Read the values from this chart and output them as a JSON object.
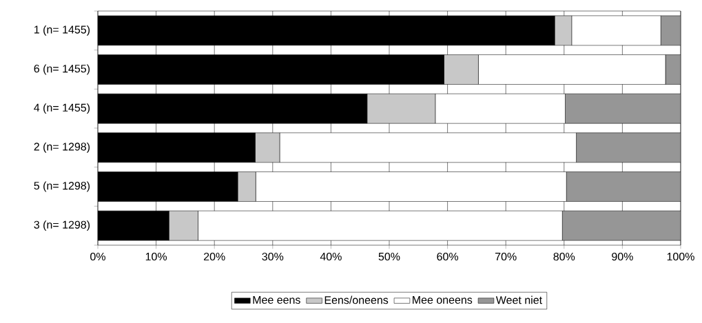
{
  "chart_data": {
    "type": "bar",
    "orientation": "horizontal",
    "stacked": true,
    "categories": [
      "1 (n= 1455)",
      "6 (n= 1455)",
      "4 (n= 1455)",
      "2 (n= 1298)",
      "5 (n= 1298)",
      "3 (n= 1298)"
    ],
    "series": [
      {
        "name": "Mee eens",
        "color": "#000000",
        "values": [
          78.4,
          59.4,
          46.2,
          27.0,
          24.0,
          12.2
        ]
      },
      {
        "name": "Eens/oneens",
        "color": "#c8c8c8",
        "values": [
          2.9,
          5.9,
          11.7,
          4.2,
          3.1,
          5.0
        ]
      },
      {
        "name": "Mee oneens",
        "color": "#ffffff",
        "values": [
          15.3,
          32.1,
          22.3,
          50.9,
          53.3,
          62.5
        ]
      },
      {
        "name": "Weet niet",
        "color": "#969696",
        "values": [
          3.4,
          2.6,
          19.8,
          17.9,
          19.6,
          20.3
        ]
      }
    ],
    "xlim": [
      0,
      100
    ],
    "xticks": [
      {
        "value": 0,
        "label": "0%"
      },
      {
        "value": 10,
        "label": "10%"
      },
      {
        "value": 20,
        "label": "20%"
      },
      {
        "value": 30,
        "label": "30%"
      },
      {
        "value": 40,
        "label": "40%"
      },
      {
        "value": 50,
        "label": "50%"
      },
      {
        "value": 60,
        "label": "60%"
      },
      {
        "value": 70,
        "label": "70%"
      },
      {
        "value": 80,
        "label": "80%"
      },
      {
        "value": 90,
        "label": "90%"
      },
      {
        "value": 100,
        "label": "100%"
      }
    ],
    "grid": "x",
    "legend": "bottom"
  }
}
